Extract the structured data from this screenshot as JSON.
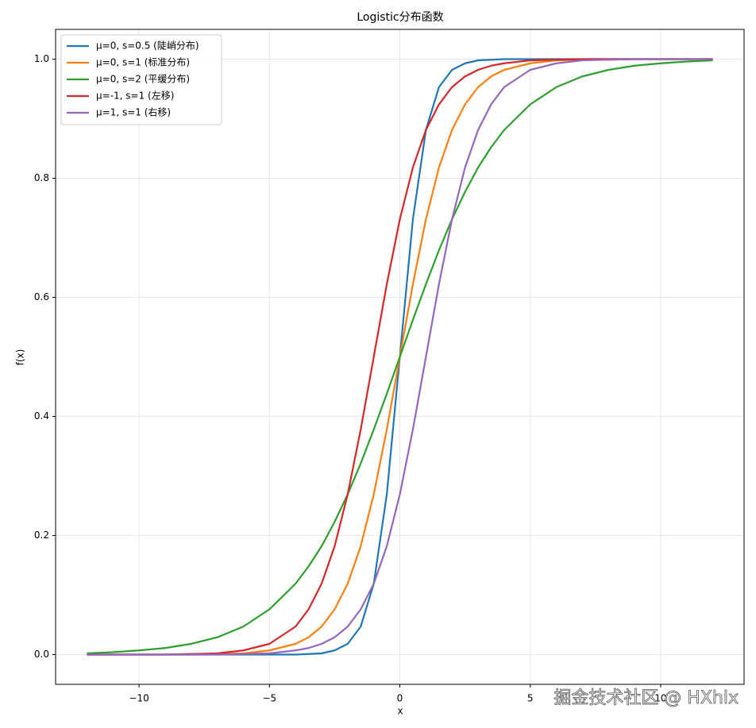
{
  "chart_data": {
    "type": "line",
    "title": "Logistic分布函数",
    "xlabel": "x",
    "ylabel": "f(x)",
    "x": [
      -12,
      -11,
      -10,
      -9,
      -8,
      -7,
      -6,
      -5,
      -4,
      -3.5,
      -3,
      -2.5,
      -2,
      -1.5,
      -1,
      -0.5,
      0,
      0.5,
      1,
      1.5,
      2,
      2.5,
      3,
      3.5,
      4,
      5,
      6,
      7,
      8,
      9,
      10,
      11,
      12
    ],
    "series": [
      {
        "name": "μ=0, s=0.5 (陡峭分布)",
        "color": "#1f77b4",
        "values": [
          0,
          0,
          0,
          0,
          0,
          0,
          0,
          0,
          0,
          0.001,
          0.002,
          0.007,
          0.018,
          0.047,
          0.119,
          0.269,
          0.5,
          0.731,
          0.881,
          0.953,
          0.982,
          0.993,
          0.998,
          0.999,
          1,
          1,
          1,
          1,
          1,
          1,
          1,
          1,
          1
        ]
      },
      {
        "name": "μ=0, s=1 (标准分布)",
        "color": "#ff7f0e",
        "values": [
          0,
          0,
          0,
          0,
          0,
          0.001,
          0.002,
          0.007,
          0.018,
          0.029,
          0.047,
          0.076,
          0.119,
          0.182,
          0.269,
          0.378,
          0.5,
          0.622,
          0.731,
          0.818,
          0.881,
          0.924,
          0.953,
          0.971,
          0.982,
          0.993,
          0.998,
          0.999,
          1,
          1,
          1,
          1,
          1
        ]
      },
      {
        "name": "μ=0, s=2 (平缓分布)",
        "color": "#2ca02c",
        "values": [
          0.002,
          0.004,
          0.007,
          0.011,
          0.018,
          0.029,
          0.047,
          0.076,
          0.119,
          0.148,
          0.182,
          0.223,
          0.269,
          0.321,
          0.378,
          0.438,
          0.5,
          0.562,
          0.622,
          0.679,
          0.731,
          0.777,
          0.818,
          0.852,
          0.881,
          0.924,
          0.953,
          0.971,
          0.982,
          0.989,
          0.993,
          0.996,
          0.998
        ]
      },
      {
        "name": "μ=-1, s=1 (左移)",
        "color": "#d62728",
        "values": [
          0,
          0,
          0,
          0,
          0.001,
          0.002,
          0.007,
          0.018,
          0.047,
          0.076,
          0.119,
          0.182,
          0.269,
          0.378,
          0.5,
          0.622,
          0.731,
          0.818,
          0.881,
          0.924,
          0.953,
          0.971,
          0.982,
          0.989,
          0.993,
          0.998,
          0.999,
          1,
          1,
          1,
          1,
          1,
          1
        ]
      },
      {
        "name": "μ=1, s=1 (右移)",
        "color": "#9467bd",
        "values": [
          0,
          0,
          0,
          0,
          0,
          0,
          0.001,
          0.002,
          0.007,
          0.011,
          0.018,
          0.029,
          0.047,
          0.076,
          0.119,
          0.182,
          0.269,
          0.378,
          0.5,
          0.622,
          0.731,
          0.818,
          0.881,
          0.924,
          0.953,
          0.982,
          0.993,
          0.998,
          0.999,
          1,
          1,
          1,
          1
        ]
      }
    ],
    "xlim": [
      -13.2,
      13.2
    ],
    "ylim": [
      -0.05,
      1.05
    ],
    "xticks": [
      {
        "value": -10,
        "label": "−10"
      },
      {
        "value": -5,
        "label": "−5"
      },
      0,
      5,
      10
    ],
    "yticks": [
      {
        "value": 0,
        "label": "0.0"
      },
      0.2,
      0.4,
      0.6,
      0.8,
      {
        "value": 1,
        "label": "1.0"
      }
    ],
    "grid": true,
    "legend": "upper-left"
  },
  "watermark": "掘金技术社区 @ HXhlx"
}
